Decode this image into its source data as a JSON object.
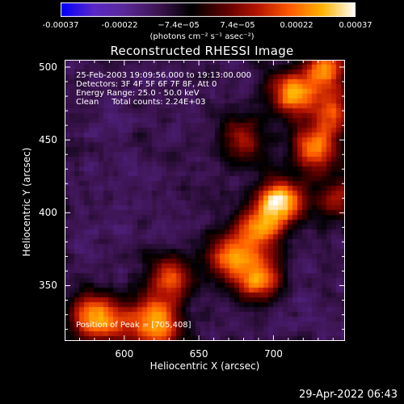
{
  "colorbar": {
    "tick_labels": [
      "-0.00037",
      "-0.00022",
      "−7.4e−05",
      "7.4e−05",
      "0.00022",
      "0.00037"
    ],
    "units_label": "(photons cm⁻² s⁻¹ asec⁻²)",
    "colors": [
      "#0000ff",
      "#5a28c8",
      "#5a2896",
      "#3c1450",
      "#000000",
      "#5a0000",
      "#b41400",
      "#ff5a00",
      "#ffb400",
      "#ffffff"
    ]
  },
  "chart_data": {
    "type": "heatmap",
    "title": "Reconstructed RHESSI Image",
    "xlabel": "Heliocentric X (arcsec)",
    "ylabel": "Heliocentric Y (arcsec)",
    "xlim": [
      560,
      748
    ],
    "ylim": [
      312,
      505
    ],
    "x_ticks": [
      "600",
      "650",
      "700"
    ],
    "y_ticks": [
      "500",
      "450",
      "400",
      "350"
    ],
    "x_tick_values": [
      600,
      650,
      700
    ],
    "y_tick_values": [
      500,
      450,
      400,
      350
    ],
    "peak_position": [
      705,
      408
    ],
    "bright_sources": [
      {
        "x": 712,
        "y": 482,
        "intensity": 0.85
      },
      {
        "x": 736,
        "y": 500,
        "intensity": 0.75
      },
      {
        "x": 728,
        "y": 445,
        "intensity": 0.8
      },
      {
        "x": 705,
        "y": 408,
        "intensity": 1.0
      },
      {
        "x": 690,
        "y": 388,
        "intensity": 0.75
      },
      {
        "x": 690,
        "y": 355,
        "intensity": 0.8
      },
      {
        "x": 670,
        "y": 370,
        "intensity": 0.7
      },
      {
        "x": 630,
        "y": 355,
        "intensity": 0.65
      },
      {
        "x": 578,
        "y": 330,
        "intensity": 0.7
      },
      {
        "x": 592,
        "y": 322,
        "intensity": 0.5
      },
      {
        "x": 617,
        "y": 330,
        "intensity": 0.55
      },
      {
        "x": 625,
        "y": 318,
        "intensity": 0.55
      },
      {
        "x": 680,
        "y": 450,
        "intensity": 0.5
      },
      {
        "x": 740,
        "y": 470,
        "intensity": 0.6
      },
      {
        "x": 745,
        "y": 410,
        "intensity": 0.5
      }
    ],
    "annotations": {
      "line1": "25-Feb-2003 19:09:56.000 to 19:13:00.000",
      "line2": "Detectors: 3F 4F 5F 6F 7F 8F, Att 0",
      "line3": "Energy Range: 25.0 - 50.0 keV",
      "line4": "Clean     Total counts: 2.24E+03",
      "peak_label": "Position of Peak = [705,408]"
    }
  },
  "footer": {
    "timestamp": "29-Apr-2022 06:43"
  }
}
